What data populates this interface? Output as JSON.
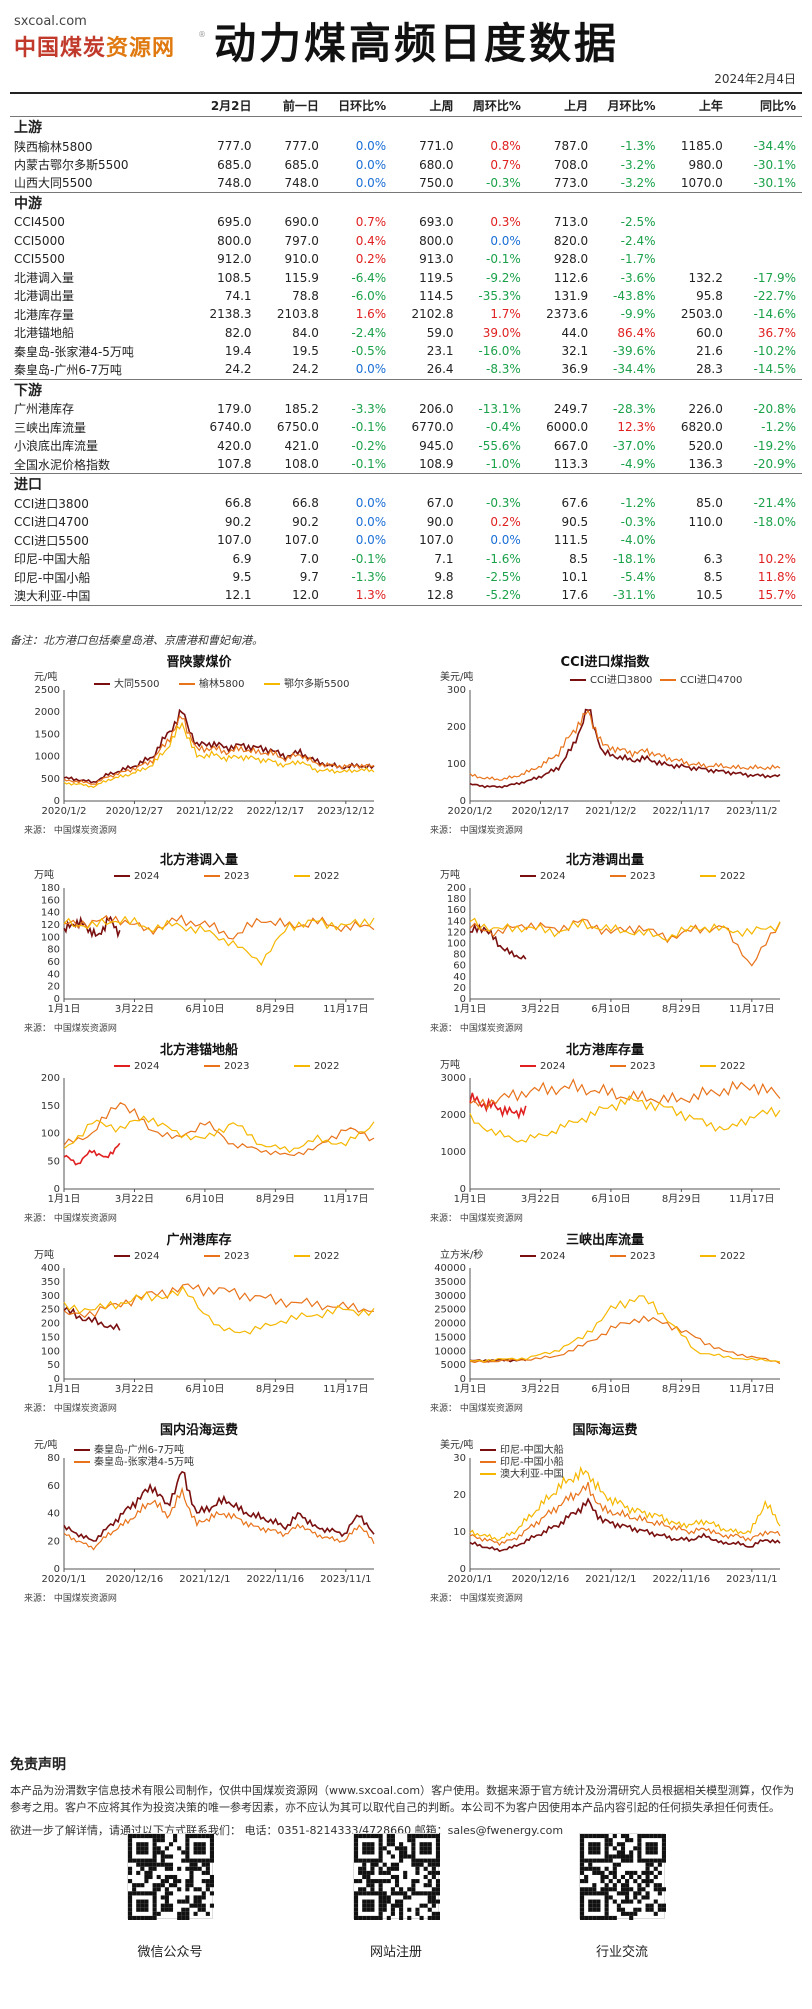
{
  "header": {
    "site": "sxcoal.com",
    "brand_a": "中国煤炭",
    "brand_b": "资源网",
    "reg": "®",
    "title": "动力煤高频日度数据",
    "date": "2024年2月4日"
  },
  "table": {
    "columns": [
      "",
      "2月2日",
      "前一日",
      "日环比%",
      "上周",
      "周环比%",
      "上月",
      "月环比%",
      "上年",
      "同比%"
    ],
    "sections": [
      {
        "name": "上游",
        "rows": [
          [
            "陕西榆林5800",
            "777.0",
            "777.0",
            "0.0%",
            "771.0",
            "0.8%",
            "787.0",
            "-1.3%",
            "1185.0",
            "-34.4%"
          ],
          [
            "内蒙古鄂尔多斯5500",
            "685.0",
            "685.0",
            "0.0%",
            "680.0",
            "0.7%",
            "708.0",
            "-3.2%",
            "980.0",
            "-30.1%"
          ],
          [
            "山西大同5500",
            "748.0",
            "748.0",
            "0.0%",
            "750.0",
            "-0.3%",
            "773.0",
            "-3.2%",
            "1070.0",
            "-30.1%"
          ]
        ]
      },
      {
        "name": "中游",
        "rows": [
          [
            "CCI4500",
            "695.0",
            "690.0",
            "0.7%",
            "693.0",
            "0.3%",
            "713.0",
            "-2.5%",
            "",
            ""
          ],
          [
            "CCI5000",
            "800.0",
            "797.0",
            "0.4%",
            "800.0",
            "0.0%",
            "820.0",
            "-2.4%",
            "",
            ""
          ],
          [
            "CCI5500",
            "912.0",
            "910.0",
            "0.2%",
            "913.0",
            "-0.1%",
            "928.0",
            "-1.7%",
            "",
            ""
          ],
          [
            "北港调入量",
            "108.5",
            "115.9",
            "-6.4%",
            "119.5",
            "-9.2%",
            "112.6",
            "-3.6%",
            "132.2",
            "-17.9%"
          ],
          [
            "北港调出量",
            "74.1",
            "78.8",
            "-6.0%",
            "114.5",
            "-35.3%",
            "131.9",
            "-43.8%",
            "95.8",
            "-22.7%"
          ],
          [
            "北港库存量",
            "2138.3",
            "2103.8",
            "1.6%",
            "2102.8",
            "1.7%",
            "2373.6",
            "-9.9%",
            "2503.0",
            "-14.6%"
          ],
          [
            "北港锚地船",
            "82.0",
            "84.0",
            "-2.4%",
            "59.0",
            "39.0%",
            "44.0",
            "86.4%",
            "60.0",
            "36.7%"
          ],
          [
            "秦皇岛-张家港4-5万吨",
            "19.4",
            "19.5",
            "-0.5%",
            "23.1",
            "-16.0%",
            "32.1",
            "-39.6%",
            "21.6",
            "-10.2%"
          ],
          [
            "秦皇岛-广州6-7万吨",
            "24.2",
            "24.2",
            "0.0%",
            "26.4",
            "-8.3%",
            "36.9",
            "-34.4%",
            "28.3",
            "-14.5%"
          ]
        ]
      },
      {
        "name": "下游",
        "rows": [
          [
            "广州港库存",
            "179.0",
            "185.2",
            "-3.3%",
            "206.0",
            "-13.1%",
            "249.7",
            "-28.3%",
            "226.0",
            "-20.8%"
          ],
          [
            "三峡出库流量",
            "6740.0",
            "6750.0",
            "-0.1%",
            "6770.0",
            "-0.4%",
            "6000.0",
            "12.3%",
            "6820.0",
            "-1.2%"
          ],
          [
            "小浪底出库流量",
            "420.0",
            "421.0",
            "-0.2%",
            "945.0",
            "-55.6%",
            "667.0",
            "-37.0%",
            "520.0",
            "-19.2%"
          ],
          [
            "全国水泥价格指数",
            "107.8",
            "108.0",
            "-0.1%",
            "108.9",
            "-1.0%",
            "113.3",
            "-4.9%",
            "136.3",
            "-20.9%"
          ]
        ]
      },
      {
        "name": "进口",
        "rows": [
          [
            "CCI进口3800",
            "66.8",
            "66.8",
            "0.0%",
            "67.0",
            "-0.3%",
            "67.6",
            "-1.2%",
            "85.0",
            "-21.4%"
          ],
          [
            "CCI进口4700",
            "90.2",
            "90.2",
            "0.0%",
            "90.0",
            "0.2%",
            "90.5",
            "-0.3%",
            "110.0",
            "-18.0%"
          ],
          [
            "CCI进口5500",
            "107.0",
            "107.0",
            "0.0%",
            "107.0",
            "0.0%",
            "111.5",
            "-4.0%",
            "",
            ""
          ],
          [
            "印尼-中国大船",
            "6.9",
            "7.0",
            "-0.1%",
            "7.1",
            "-1.6%",
            "8.5",
            "-18.1%",
            "6.3",
            "10.2%"
          ],
          [
            "印尼-中国小船",
            "9.5",
            "9.7",
            "-1.3%",
            "9.8",
            "-2.5%",
            "10.1",
            "-5.4%",
            "8.5",
            "11.8%"
          ],
          [
            "澳大利亚-中国",
            "12.1",
            "12.0",
            "1.3%",
            "12.8",
            "-5.2%",
            "17.6",
            "-31.1%",
            "10.5",
            "15.7%"
          ]
        ]
      }
    ]
  },
  "note": "备注：北方港口包括秦皇岛港、京唐港和曹妃甸港。",
  "source_label": "来源：  中国煤炭资源网",
  "colors": {
    "dark": "#7a0f0f",
    "orange": "#e8731a",
    "yellow": "#f5b700",
    "red": "#e02020",
    "green": "#1aa14a",
    "blue": "#1a6fd6"
  },
  "chart_data": [
    {
      "type": "line",
      "title": "晋陕蒙煤价",
      "unit": "元/吨",
      "ylim": [
        0,
        2500
      ],
      "yticks": [
        0,
        500,
        1000,
        1500,
        2000,
        2500
      ],
      "xticks": [
        "2020/1/2",
        "2020/12/27",
        "2021/12/22",
        "2022/12/17",
        "2023/12/12"
      ],
      "series": [
        {
          "name": "大同5500",
          "values": [
            520,
            480,
            420,
            600,
            700,
            820,
            1000,
            1500,
            2000,
            1250,
            1300,
            1200,
            1250,
            1200,
            1150,
            1000,
            1100,
            900,
            800,
            760,
            800,
            750
          ]
        },
        {
          "name": "榆林5800",
          "values": [
            460,
            440,
            380,
            550,
            650,
            760,
            920,
            1350,
            1900,
            1150,
            1200,
            1100,
            1180,
            1100,
            1080,
            950,
            1050,
            850,
            800,
            780,
            800,
            777
          ]
        },
        {
          "name": "鄂尔多斯5500",
          "values": [
            400,
            380,
            320,
            480,
            560,
            660,
            820,
            1200,
            1750,
            1000,
            1050,
            960,
            1000,
            950,
            900,
            800,
            900,
            700,
            680,
            660,
            700,
            685
          ]
        }
      ]
    },
    {
      "type": "line",
      "title": "CCI进口煤指数",
      "unit": "美元/吨",
      "ylim": [
        0,
        300
      ],
      "yticks": [
        0,
        100,
        200,
        300
      ],
      "xticks": [
        "2020/1/2",
        "2020/12/17",
        "2021/12/2",
        "2022/11/17",
        "2023/11/2"
      ],
      "series": [
        {
          "name": "CCI进口3800",
          "values": [
            45,
            40,
            38,
            45,
            55,
            70,
            90,
            150,
            250,
            130,
            120,
            110,
            115,
            100,
            95,
            90,
            85,
            80,
            75,
            70,
            68,
            67
          ]
        },
        {
          "name": "CCI进口4700",
          "values": [
            70,
            62,
            58,
            65,
            80,
            100,
            130,
            190,
            240,
            150,
            140,
            130,
            135,
            120,
            110,
            100,
            95,
            95,
            90,
            90,
            90,
            90
          ]
        }
      ]
    },
    {
      "type": "line",
      "title": "北方港调入量",
      "unit": "万吨",
      "ylim": [
        0,
        180
      ],
      "yticks": [
        0,
        20,
        40,
        60,
        80,
        100,
        120,
        140,
        160,
        180
      ],
      "xticks": [
        "1月1日",
        "3月22日",
        "6月10日",
        "8月29日",
        "11月17日"
      ],
      "series": [
        {
          "name": "2024",
          "values": [
            110,
            125,
            118,
            100,
            130,
            108
          ]
        },
        {
          "name": "2023",
          "values": [
            120,
            125,
            130,
            110,
            128,
            122,
            100,
            130,
            118,
            125,
            115,
            120
          ]
        },
        {
          "name": "2022",
          "values": [
            125,
            118,
            130,
            115,
            120,
            110,
            90,
            60,
            120,
            125,
            118,
            130
          ]
        }
      ]
    },
    {
      "type": "line",
      "title": "北方港调出量",
      "unit": "万吨",
      "ylim": [
        0,
        200
      ],
      "yticks": [
        0,
        20,
        40,
        60,
        80,
        100,
        120,
        140,
        160,
        180,
        200
      ],
      "xticks": [
        "1月1日",
        "3月22日",
        "6月10日",
        "8月29日",
        "11月17日"
      ],
      "series": [
        {
          "name": "2024",
          "values": [
            120,
            130,
            100,
            80,
            74
          ]
        },
        {
          "name": "2023",
          "values": [
            130,
            120,
            135,
            125,
            140,
            120,
            130,
            110,
            125,
            130,
            60,
            140
          ]
        },
        {
          "name": "2022",
          "values": [
            140,
            125,
            130,
            120,
            135,
            125,
            120,
            110,
            130,
            125,
            120,
            135
          ]
        }
      ]
    },
    {
      "type": "line",
      "title": "北方港锚地船",
      "unit": "",
      "ylim": [
        0,
        200
      ],
      "yticks": [
        0,
        50,
        100,
        150,
        200
      ],
      "xticks": [
        "1月1日",
        "3月22日",
        "6月10日",
        "8月29日",
        "11月17日"
      ],
      "series": [
        {
          "name": "2024",
          "values": [
            60,
            45,
            70,
            55,
            82
          ]
        },
        {
          "name": "2023",
          "values": [
            80,
            100,
            160,
            110,
            90,
            120,
            80,
            70,
            60,
            75,
            110,
            90
          ]
        },
        {
          "name": "2022",
          "values": [
            70,
            120,
            110,
            130,
            100,
            90,
            120,
            80,
            70,
            90,
            80,
            120
          ]
        }
      ]
    },
    {
      "type": "line",
      "title": "北方港库存量",
      "unit": "万吨",
      "ylim": [
        0,
        3000
      ],
      "yticks": [
        0,
        1000,
        2000,
        3000
      ],
      "xticks": [
        "1月1日",
        "3月22日",
        "6月10日",
        "8月29日",
        "11月17日"
      ],
      "series": [
        {
          "name": "2024",
          "values": [
            2450,
            2300,
            2200,
            2050,
            2138
          ]
        },
        {
          "name": "2023",
          "values": [
            2250,
            2400,
            2600,
            2700,
            2750,
            2650,
            2500,
            2450,
            2400,
            2550,
            2700,
            2800,
            2500
          ]
        },
        {
          "name": "2022",
          "values": [
            1900,
            1500,
            1300,
            1500,
            1800,
            2100,
            2400,
            2300,
            2100,
            1800,
            1600,
            2000,
            2100
          ]
        }
      ]
    },
    {
      "type": "line",
      "title": "广州港库存",
      "unit": "万吨",
      "ylim": [
        0,
        400
      ],
      "yticks": [
        0,
        50,
        100,
        150,
        200,
        250,
        300,
        350,
        400
      ],
      "xticks": [
        "1月1日",
        "3月22日",
        "6月10日",
        "8月29日",
        "11月17日"
      ],
      "series": [
        {
          "name": "2024",
          "values": [
            250,
            220,
            200,
            179
          ]
        },
        {
          "name": "2023",
          "values": [
            230,
            240,
            280,
            310,
            330,
            320,
            300,
            280,
            270,
            260,
            250
          ]
        },
        {
          "name": "2022",
          "values": [
            260,
            250,
            280,
            300,
            310,
            180,
            170,
            210,
            230,
            250,
            240
          ]
        }
      ]
    },
    {
      "type": "line",
      "title": "三峡出库流量",
      "unit": "立方米/秒",
      "ylim": [
        0,
        40000
      ],
      "yticks": [
        0,
        5000,
        10000,
        15000,
        20000,
        25000,
        30000,
        35000,
        40000
      ],
      "xticks": [
        "1月1日",
        "3月22日",
        "6月10日",
        "8月29日",
        "11月17日"
      ],
      "series": [
        {
          "name": "2024",
          "values": [
            6500,
            6700,
            6800,
            6740
          ]
        },
        {
          "name": "2023",
          "values": [
            6000,
            6500,
            7000,
            8000,
            12000,
            18000,
            22000,
            20000,
            15000,
            10000,
            8000,
            6000
          ]
        },
        {
          "name": "2022",
          "values": [
            6500,
            7000,
            7500,
            10000,
            15000,
            25000,
            30000,
            22000,
            10000,
            8000,
            7000,
            6500
          ]
        }
      ]
    },
    {
      "type": "line",
      "title": "国内沿海运费",
      "unit": "元/吨",
      "ylim": [
        0,
        80
      ],
      "yticks": [
        0,
        20,
        40,
        60,
        80
      ],
      "xticks": [
        "2020/1/1",
        "2020/12/16",
        "2021/12/1",
        "2022/11/16",
        "2023/11/1"
      ],
      "series": [
        {
          "name": "秦皇岛-广州6-7万吨",
          "values": [
            30,
            25,
            20,
            30,
            40,
            50,
            60,
            45,
            70,
            40,
            45,
            50,
            42,
            38,
            35,
            30,
            40,
            30,
            28,
            25,
            40,
            24
          ]
        },
        {
          "name": "秦皇岛-张家港4-5万吨",
          "values": [
            25,
            20,
            15,
            25,
            32,
            40,
            50,
            38,
            55,
            32,
            38,
            40,
            35,
            30,
            28,
            25,
            32,
            25,
            22,
            20,
            32,
            19
          ]
        }
      ]
    },
    {
      "type": "line",
      "title": "国际海运费",
      "unit": "美元/吨",
      "ylim": [
        0,
        30
      ],
      "yticks": [
        0,
        10,
        20,
        30
      ],
      "xticks": [
        "2020/1/1",
        "2020/12/16",
        "2021/12/1",
        "2022/11/16",
        "2023/11/1"
      ],
      "series": [
        {
          "name": "印尼-中国大船",
          "values": [
            7,
            6,
            5,
            6,
            8,
            10,
            12,
            15,
            18,
            13,
            12,
            11,
            10,
            9,
            8,
            8,
            9,
            7,
            7,
            6,
            8,
            7
          ]
        },
        {
          "name": "印尼-中国小船",
          "values": [
            9,
            8,
            7,
            8,
            11,
            14,
            17,
            20,
            22,
            16,
            15,
            14,
            13,
            12,
            11,
            10,
            11,
            9,
            9,
            8,
            10,
            9.5
          ]
        },
        {
          "name": "澳大利亚-中国",
          "values": [
            10,
            9,
            8,
            10,
            14,
            18,
            22,
            25,
            26,
            20,
            18,
            16,
            15,
            14,
            12,
            12,
            13,
            11,
            10,
            10,
            18,
            12
          ]
        }
      ]
    }
  ],
  "disclaimer": {
    "title": "免责声明",
    "text": "本产品为汾渭数字信息技术有限公司制作，仅供中国煤炭资源网（www.sxcoal.com）客户使用。数据来源于官方统计及汾渭研究人员根据相关模型测算，仅作为参考之用。客户不应将其作为投资决策的唯一参考因素，亦不应认为其可以取代自己的判断。本公司不为客户因使用本产品内容引起的任何损失承担任何责任。",
    "contact": "欲进一步了解详情，请通过以下方式联系我们：  电话：0351-8214333/4728660  邮箱：sales@fwenergy.com"
  },
  "qr": [
    {
      "label": "微信公众号"
    },
    {
      "label": "网站注册"
    },
    {
      "label": "行业交流"
    }
  ]
}
